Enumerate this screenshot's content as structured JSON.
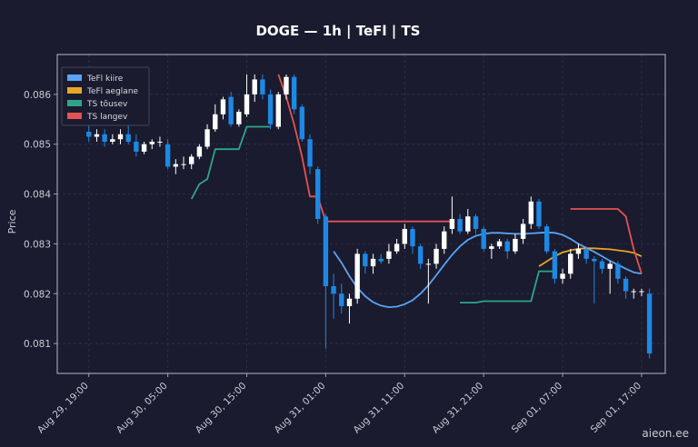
{
  "chart_data": {
    "type": "candlestick",
    "title": "DOGE — 1h  |  TeFl  |  TS",
    "xlabel": "",
    "ylabel": "Price",
    "ylim": [
      0.0804,
      0.0868
    ],
    "xlim": [
      "Aug 29, 15:00",
      "Sep 01, 20:00"
    ],
    "grid": true,
    "legend_position": "top-left",
    "x_ticks": [
      "Aug 29, 19:00",
      "Aug 30, 05:00",
      "Aug 30, 15:00",
      "Aug 31, 01:00",
      "Aug 31, 11:00",
      "Aug 31, 21:00",
      "Sep 01, 07:00",
      "Sep 01, 17:00"
    ],
    "y_ticks": [
      "0.081",
      "0.082",
      "0.083",
      "0.084",
      "0.085",
      "0.086"
    ],
    "y_tick_values": [
      0.081,
      0.082,
      0.083,
      0.084,
      0.085,
      0.086
    ],
    "candles": {
      "time": [
        "Aug 29, 19:00",
        "Aug 29, 20:00",
        "Aug 29, 21:00",
        "Aug 29, 22:00",
        "Aug 29, 23:00",
        "Aug 30, 00:00",
        "Aug 30, 01:00",
        "Aug 30, 02:00",
        "Aug 30, 03:00",
        "Aug 30, 04:00",
        "Aug 30, 05:00",
        "Aug 30, 06:00",
        "Aug 30, 07:00",
        "Aug 30, 08:00",
        "Aug 30, 09:00",
        "Aug 30, 10:00",
        "Aug 30, 11:00",
        "Aug 30, 12:00",
        "Aug 30, 13:00",
        "Aug 30, 14:00",
        "Aug 30, 15:00",
        "Aug 30, 16:00",
        "Aug 30, 17:00",
        "Aug 30, 18:00",
        "Aug 30, 19:00",
        "Aug 30, 20:00",
        "Aug 30, 21:00",
        "Aug 30, 22:00",
        "Aug 30, 23:00",
        "Aug 31, 00:00",
        "Aug 31, 01:00",
        "Aug 31, 02:00",
        "Aug 31, 03:00",
        "Aug 31, 04:00",
        "Aug 31, 05:00",
        "Aug 31, 06:00",
        "Aug 31, 07:00",
        "Aug 31, 08:00",
        "Aug 31, 09:00",
        "Aug 31, 10:00",
        "Aug 31, 11:00",
        "Aug 31, 12:00",
        "Aug 31, 13:00",
        "Aug 31, 14:00",
        "Aug 31, 15:00",
        "Aug 31, 16:00",
        "Aug 31, 17:00",
        "Aug 31, 18:00",
        "Aug 31, 19:00",
        "Aug 31, 20:00",
        "Aug 31, 21:00",
        "Aug 31, 22:00",
        "Aug 31, 23:00",
        "Sep 01, 00:00",
        "Sep 01, 01:00",
        "Sep 01, 02:00",
        "Sep 01, 03:00",
        "Sep 01, 04:00",
        "Sep 01, 05:00",
        "Sep 01, 06:00",
        "Sep 01, 07:00",
        "Sep 01, 08:00",
        "Sep 01, 09:00",
        "Sep 01, 10:00",
        "Sep 01, 11:00",
        "Sep 01, 12:00",
        "Sep 01, 13:00",
        "Sep 01, 14:00",
        "Sep 01, 15:00",
        "Sep 01, 16:00",
        "Sep 01, 17:00",
        "Sep 01, 18:00"
      ],
      "open": [
        0.08525,
        0.08515,
        0.0852,
        0.08505,
        0.0851,
        0.0852,
        0.08505,
        0.08485,
        0.085,
        0.08505,
        0.085,
        0.08455,
        0.0846,
        0.0846,
        0.08475,
        0.08495,
        0.0853,
        0.0856,
        0.08595,
        0.0854,
        0.0856,
        0.086,
        0.0863,
        0.086,
        0.08535,
        0.086,
        0.08635,
        0.08575,
        0.0851,
        0.0845,
        0.08355,
        0.08215,
        0.082,
        0.08175,
        0.0819,
        0.0828,
        0.08255,
        0.0827,
        0.0827,
        0.08285,
        0.083,
        0.0833,
        0.08295,
        0.0826,
        0.0826,
        0.0829,
        0.0833,
        0.0835,
        0.08325,
        0.08355,
        0.0833,
        0.0829,
        0.08295,
        0.08305,
        0.08285,
        0.0831,
        0.0834,
        0.08385,
        0.08335,
        0.08285,
        0.0823,
        0.0824,
        0.0828,
        0.0829,
        0.0827,
        0.08265,
        0.0825,
        0.0826,
        0.0823,
        0.08205,
        0.08205,
        0.082
      ],
      "close": [
        0.08515,
        0.0852,
        0.08505,
        0.0851,
        0.0852,
        0.08505,
        0.08485,
        0.085,
        0.08505,
        0.08505,
        0.08455,
        0.0846,
        0.0846,
        0.08475,
        0.08495,
        0.0853,
        0.0856,
        0.0859,
        0.0854,
        0.08565,
        0.086,
        0.0863,
        0.086,
        0.0854,
        0.086,
        0.08635,
        0.0857,
        0.0851,
        0.08455,
        0.0835,
        0.08215,
        0.082,
        0.08175,
        0.0819,
        0.0828,
        0.08255,
        0.0827,
        0.08265,
        0.08285,
        0.083,
        0.0833,
        0.08295,
        0.0826,
        0.0826,
        0.0829,
        0.08325,
        0.0835,
        0.08325,
        0.08355,
        0.0833,
        0.0829,
        0.08295,
        0.08305,
        0.08285,
        0.0831,
        0.0834,
        0.08385,
        0.08335,
        0.08285,
        0.0823,
        0.0824,
        0.0828,
        0.0829,
        0.0827,
        0.08265,
        0.0825,
        0.0826,
        0.0823,
        0.08205,
        0.08205,
        0.08205,
        0.0808
      ],
      "high": [
        0.0854,
        0.0853,
        0.0853,
        0.0852,
        0.0853,
        0.0855,
        0.0852,
        0.08505,
        0.0851,
        0.08515,
        0.0851,
        0.0847,
        0.08475,
        0.0848,
        0.085,
        0.0854,
        0.0858,
        0.08595,
        0.08605,
        0.0857,
        0.0864,
        0.0864,
        0.0864,
        0.0861,
        0.08605,
        0.0864,
        0.0864,
        0.0858,
        0.0852,
        0.08455,
        0.0836,
        0.0824,
        0.0822,
        0.082,
        0.0829,
        0.08285,
        0.0828,
        0.0828,
        0.083,
        0.0831,
        0.0834,
        0.08335,
        0.083,
        0.0827,
        0.083,
        0.08335,
        0.08395,
        0.0836,
        0.0837,
        0.0836,
        0.08335,
        0.083,
        0.0831,
        0.0831,
        0.0832,
        0.0835,
        0.08395,
        0.0839,
        0.0834,
        0.0829,
        0.0825,
        0.0829,
        0.083,
        0.08295,
        0.08275,
        0.0827,
        0.08265,
        0.08265,
        0.08235,
        0.0821,
        0.0821,
        0.0821
      ],
      "low": [
        0.08505,
        0.08505,
        0.08495,
        0.085,
        0.085,
        0.085,
        0.08475,
        0.0848,
        0.0849,
        0.08495,
        0.0845,
        0.0844,
        0.0845,
        0.0845,
        0.0847,
        0.0849,
        0.08525,
        0.0855,
        0.08535,
        0.08535,
        0.08555,
        0.08585,
        0.0859,
        0.0853,
        0.0853,
        0.0859,
        0.0856,
        0.08505,
        0.0844,
        0.0834,
        0.0809,
        0.0815,
        0.0816,
        0.0814,
        0.0818,
        0.0824,
        0.0824,
        0.0826,
        0.0826,
        0.0828,
        0.0829,
        0.0828,
        0.0825,
        0.0818,
        0.0825,
        0.0828,
        0.0832,
        0.0832,
        0.0832,
        0.0832,
        0.08285,
        0.0827,
        0.0829,
        0.0827,
        0.0828,
        0.083,
        0.0833,
        0.0833,
        0.0828,
        0.0822,
        0.0822,
        0.0823,
        0.0827,
        0.0826,
        0.0818,
        0.0824,
        0.082,
        0.0822,
        0.0819,
        0.0819,
        0.08195,
        0.0807
      ]
    },
    "series": [
      {
        "name": "TeFl kiire",
        "color": "#5ba3f5",
        "x": [
          "Aug 31, 02:00",
          "Aug 31, 03:00",
          "Aug 31, 04:00",
          "Aug 31, 05:00",
          "Aug 31, 06:00",
          "Aug 31, 07:00",
          "Aug 31, 08:00",
          "Aug 31, 09:00",
          "Aug 31, 10:00",
          "Aug 31, 11:00",
          "Aug 31, 12:00",
          "Aug 31, 13:00",
          "Aug 31, 14:00",
          "Aug 31, 15:00",
          "Aug 31, 16:00",
          "Aug 31, 17:00",
          "Aug 31, 18:00",
          "Aug 31, 19:00",
          "Aug 31, 20:00",
          "Aug 31, 21:00",
          "Aug 31, 22:00",
          "Aug 31, 23:00",
          "Sep 01, 00:00",
          "Sep 01, 01:00",
          "Sep 01, 02:00",
          "Sep 01, 03:00",
          "Sep 01, 04:00",
          "Sep 01, 05:00",
          "Sep 01, 06:00",
          "Sep 01, 07:00",
          "Sep 01, 08:00",
          "Sep 01, 09:00",
          "Sep 01, 10:00",
          "Sep 01, 11:00",
          "Sep 01, 12:00",
          "Sep 01, 13:00",
          "Sep 01, 14:00",
          "Sep 01, 15:00",
          "Sep 01, 16:00",
          "Sep 01, 17:00"
        ],
        "values": [
          0.08285,
          0.08262,
          0.08235,
          0.08212,
          0.08195,
          0.08183,
          0.08176,
          0.08173,
          0.08174,
          0.08179,
          0.08187,
          0.082,
          0.08217,
          0.08237,
          0.08258,
          0.08278,
          0.08295,
          0.08308,
          0.08316,
          0.0832,
          0.08322,
          0.08322,
          0.08321,
          0.0832,
          0.0832,
          0.08321,
          0.08322,
          0.08323,
          0.08322,
          0.08318,
          0.0831,
          0.083,
          0.08292,
          0.08284,
          0.08275,
          0.08266,
          0.08258,
          0.0825,
          0.08243,
          0.0824
        ]
      },
      {
        "name": "TeFl aeglane",
        "color": "#e8a526",
        "x": [
          "Sep 01, 04:00",
          "Sep 01, 05:00",
          "Sep 01, 06:00",
          "Sep 01, 07:00",
          "Sep 01, 08:00",
          "Sep 01, 09:00",
          "Sep 01, 10:00",
          "Sep 01, 11:00",
          "Sep 01, 12:00",
          "Sep 01, 13:00",
          "Sep 01, 14:00",
          "Sep 01, 15:00",
          "Sep 01, 16:00",
          "Sep 01, 17:00"
        ],
        "values": [
          0.08255,
          0.08265,
          0.08275,
          0.08283,
          0.08287,
          0.0829,
          0.08291,
          0.08291,
          0.0829,
          0.08289,
          0.08287,
          0.08285,
          0.08282,
          0.08275
        ]
      },
      {
        "name": "TS tõusev",
        "color": "#2ea58a",
        "x": [
          "Aug 30, 08:00",
          "Aug 30, 09:00",
          "Aug 30, 10:00",
          "Aug 30, 11:00",
          "Aug 30, 12:00",
          "Aug 30, 13:00",
          "Aug 30, 14:00",
          "Aug 30, 15:00",
          "Aug 30, 16:00",
          "Aug 30, 17:00",
          "Aug 30, 18:00",
          "Aug 31, 18:00",
          "Aug 31, 19:00",
          "Aug 31, 20:00",
          "Aug 31, 21:00",
          "Aug 31, 22:00",
          "Aug 31, 23:00",
          "Sep 01, 00:00",
          "Sep 01, 01:00",
          "Sep 01, 02:00",
          "Sep 01, 03:00",
          "Sep 01, 04:00",
          "Sep 01, 05:00",
          "Sep 01, 06:00"
        ],
        "values": [
          0.0839,
          0.0842,
          0.0843,
          0.0849,
          0.0849,
          0.0849,
          0.0849,
          0.08535,
          0.08535,
          0.08535,
          0.08535,
          0.08182,
          0.08182,
          0.08182,
          0.08185,
          0.08185,
          0.08185,
          0.08185,
          0.08185,
          0.08185,
          0.08185,
          0.08245,
          0.08245,
          0.08245
        ]
      },
      {
        "name": "TS langev",
        "color": "#e35353",
        "x": [
          "Aug 30, 19:00",
          "Aug 30, 20:00",
          "Aug 30, 21:00",
          "Aug 30, 22:00",
          "Aug 30, 23:00",
          "Aug 31, 00:00",
          "Aug 31, 01:00",
          "Aug 31, 02:00",
          "Aug 31, 03:00",
          "Aug 31, 04:00",
          "Aug 31, 05:00",
          "Aug 31, 06:00",
          "Aug 31, 07:00",
          "Aug 31, 08:00",
          "Aug 31, 09:00",
          "Aug 31, 10:00",
          "Aug 31, 11:00",
          "Aug 31, 12:00",
          "Aug 31, 13:00",
          "Aug 31, 14:00",
          "Aug 31, 15:00",
          "Aug 31, 16:00",
          "Aug 31, 17:00",
          "Sep 01, 08:00",
          "Sep 01, 09:00",
          "Sep 01, 10:00",
          "Sep 01, 11:00",
          "Sep 01, 12:00",
          "Sep 01, 13:00",
          "Sep 01, 14:00",
          "Sep 01, 15:00",
          "Sep 01, 16:00",
          "Sep 01, 17:00"
        ],
        "values": [
          0.0864,
          0.08595,
          0.0854,
          0.08475,
          0.08395,
          0.08395,
          0.08345,
          0.08345,
          0.08345,
          0.08345,
          0.08345,
          0.08345,
          0.08345,
          0.08345,
          0.08345,
          0.08345,
          0.08345,
          0.08345,
          0.08345,
          0.08345,
          0.08345,
          0.08345,
          0.08345,
          0.0837,
          0.0837,
          0.0837,
          0.0837,
          0.0837,
          0.0837,
          0.0837,
          0.08355,
          0.0829,
          0.0824
        ]
      }
    ],
    "colors": {
      "up": "#ffffff",
      "down": "#1e88e5",
      "background": "#1a1b2e",
      "grid": "#2c2e45",
      "axis": "#9ea1b3"
    },
    "watermark": "aieon.ee"
  }
}
